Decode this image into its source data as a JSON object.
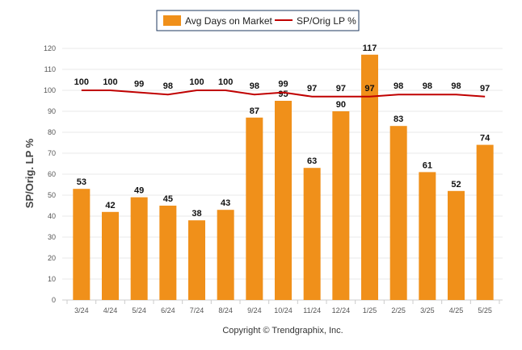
{
  "chart_data": {
    "type": "bar",
    "categories": [
      "3/24",
      "4/24",
      "5/24",
      "6/24",
      "7/24",
      "8/24",
      "9/24",
      "10/24",
      "11/24",
      "12/24",
      "1/25",
      "2/25",
      "3/25",
      "4/25",
      "5/25"
    ],
    "series": [
      {
        "name": "Avg Days on Market",
        "type": "bar",
        "color": "#f0901a",
        "values": [
          53,
          42,
          49,
          45,
          38,
          43,
          87,
          95,
          63,
          90,
          117,
          83,
          61,
          52,
          74
        ]
      },
      {
        "name": "SP/Orig LP %",
        "type": "line",
        "color": "#c00000",
        "values": [
          100,
          100,
          99,
          98,
          100,
          100,
          98,
          99,
          97,
          97,
          97,
          98,
          98,
          98,
          97
        ]
      }
    ],
    "ylabel": "SP/Orig. LP %",
    "ylim": [
      0,
      120
    ],
    "yticks": [
      0,
      10,
      20,
      30,
      40,
      50,
      60,
      70,
      80,
      90,
      100,
      110,
      120
    ],
    "grid": true,
    "legend": "top-center"
  },
  "footer": {
    "copyright": "Copyright © Trendgraphix, Inc."
  }
}
